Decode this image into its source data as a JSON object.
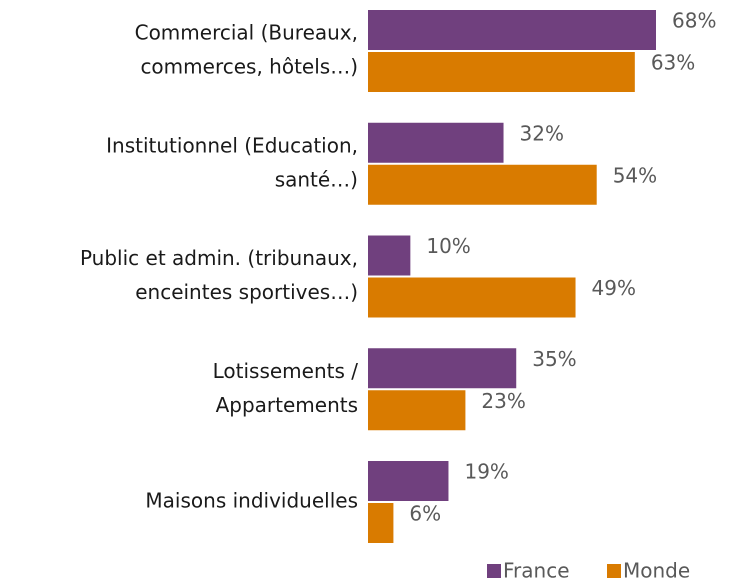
{
  "chart_data": {
    "type": "bar",
    "orientation": "horizontal",
    "categories": [
      [
        "Commercial (Bureaux,",
        "commerces, hôtels…)"
      ],
      [
        "Institutionnel (Education,",
        "santé…)"
      ],
      [
        "Public et admin. (tribunaux,",
        "enceintes sportives…)"
      ],
      [
        "Lotissements /",
        "Appartements"
      ],
      [
        "Maisons individuelles"
      ]
    ],
    "series": [
      {
        "name": "France",
        "color": "#70407e",
        "values": [
          68,
          32,
          10,
          35,
          19
        ],
        "value_labels": [
          "68%",
          "32%",
          "10%",
          "35%",
          "19%"
        ]
      },
      {
        "name": "Monde",
        "color": "#d97b00",
        "values": [
          63,
          54,
          49,
          23,
          6
        ],
        "value_labels": [
          "63%",
          "54%",
          "49%",
          "23%",
          "6%"
        ]
      }
    ],
    "legend": "bottom-right"
  }
}
